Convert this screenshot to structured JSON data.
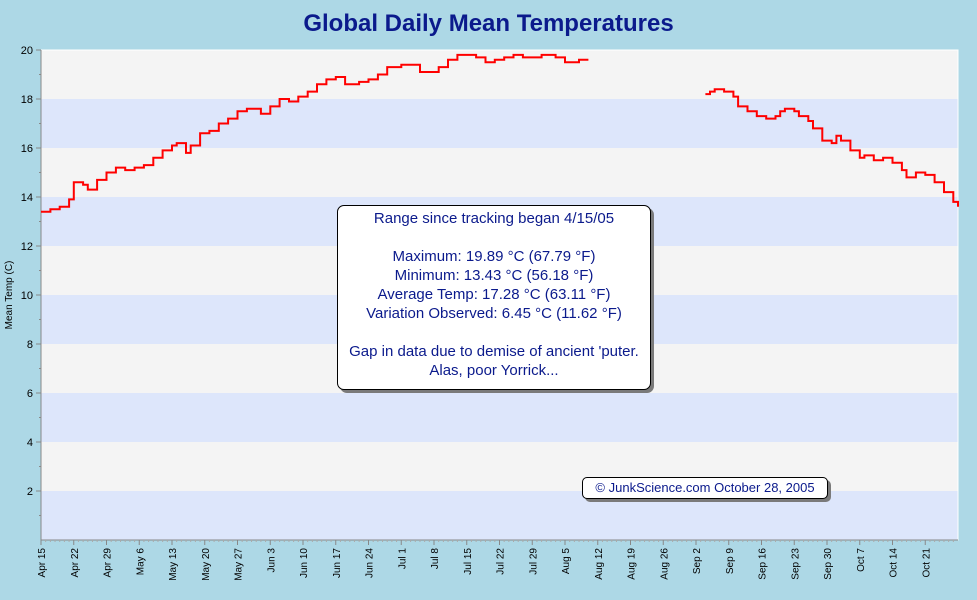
{
  "chart_data": {
    "type": "line",
    "title": "Global Daily Mean Temperatures",
    "ylabel": "Mean Temp (C)",
    "xlabel": "",
    "ylim": [
      0,
      20
    ],
    "yticks": [
      2,
      4,
      6,
      8,
      10,
      12,
      14,
      16,
      18,
      20
    ],
    "x_range": [
      "Apr 15",
      "Oct 28"
    ],
    "x_tick_labels": [
      "Apr 15",
      "Apr 22",
      "Apr 29",
      "May 6",
      "May 13",
      "May 20",
      "May 27",
      "Jun 3",
      "Jun 10",
      "Jun 17",
      "Jun 24",
      "Jul 1",
      "Jul 8",
      "Jul 15",
      "Jul 22",
      "Jul 29",
      "Aug 5",
      "Aug 12",
      "Aug 19",
      "Aug 26",
      "Sep 2",
      "Sep 9",
      "Sep 16",
      "Sep 23",
      "Sep 30",
      "Oct 7",
      "Oct 14",
      "Oct 21"
    ],
    "grid": "horizontal bands",
    "line_color": "#ff0000",
    "series": [
      {
        "values": [
          [
            "Apr 15",
            13.4
          ],
          [
            "Apr 17",
            13.5
          ],
          [
            "Apr 19",
            13.6
          ],
          [
            "Apr 21",
            13.9
          ],
          [
            "Apr 22",
            14.6
          ],
          [
            "Apr 24",
            14.5
          ],
          [
            "Apr 25",
            14.3
          ],
          [
            "Apr 27",
            14.7
          ],
          [
            "Apr 29",
            15.0
          ],
          [
            "May 1",
            15.2
          ],
          [
            "May 3",
            15.1
          ],
          [
            "May 5",
            15.2
          ],
          [
            "May 7",
            15.3
          ],
          [
            "May 9",
            15.6
          ],
          [
            "May 11",
            15.9
          ],
          [
            "May 13",
            16.1
          ],
          [
            "May 14",
            16.2
          ],
          [
            "May 16",
            15.8
          ],
          [
            "May 17",
            16.1
          ],
          [
            "May 19",
            16.6
          ],
          [
            "May 21",
            16.7
          ],
          [
            "May 23",
            17.0
          ],
          [
            "May 25",
            17.2
          ],
          [
            "May 27",
            17.5
          ],
          [
            "May 29",
            17.6
          ],
          [
            "Jun 1",
            17.4
          ],
          [
            "Jun 3",
            17.7
          ],
          [
            "Jun 5",
            18.0
          ],
          [
            "Jun 7",
            17.9
          ],
          [
            "Jun 9",
            18.1
          ],
          [
            "Jun 11",
            18.3
          ],
          [
            "Jun 13",
            18.6
          ],
          [
            "Jun 15",
            18.8
          ],
          [
            "Jun 17",
            18.9
          ],
          [
            "Jun 19",
            18.6
          ],
          [
            "Jun 22",
            18.7
          ],
          [
            "Jun 24",
            18.8
          ],
          [
            "Jun 26",
            19.0
          ],
          [
            "Jun 28",
            19.3
          ],
          [
            "Jul 1",
            19.4
          ],
          [
            "Jul 5",
            19.1
          ],
          [
            "Jul 7",
            19.1
          ],
          [
            "Jul 9",
            19.3
          ],
          [
            "Jul 11",
            19.6
          ],
          [
            "Jul 13",
            19.8
          ],
          [
            "Jul 15",
            19.8
          ],
          [
            "Jul 17",
            19.7
          ],
          [
            "Jul 19",
            19.5
          ],
          [
            "Jul 21",
            19.6
          ],
          [
            "Jul 23",
            19.7
          ],
          [
            "Jul 25",
            19.8
          ],
          [
            "Jul 27",
            19.7
          ],
          [
            "Jul 29",
            19.7
          ],
          [
            "Jul 31",
            19.8
          ],
          [
            "Aug 3",
            19.7
          ],
          [
            "Aug 5",
            19.5
          ],
          [
            "Aug 8",
            19.6
          ],
          [
            "Aug 9",
            19.6
          ]
        ]
      },
      {
        "values": [
          [
            "Sep 4",
            18.2
          ],
          [
            "Sep 5",
            18.3
          ],
          [
            "Sep 6",
            18.4
          ],
          [
            "Sep 8",
            18.3
          ],
          [
            "Sep 10",
            18.1
          ],
          [
            "Sep 11",
            17.7
          ],
          [
            "Sep 13",
            17.5
          ],
          [
            "Sep 15",
            17.3
          ],
          [
            "Sep 17",
            17.2
          ],
          [
            "Sep 19",
            17.3
          ],
          [
            "Sep 20",
            17.5
          ],
          [
            "Sep 21",
            17.6
          ],
          [
            "Sep 23",
            17.5
          ],
          [
            "Sep 24",
            17.3
          ],
          [
            "Sep 26",
            17.1
          ],
          [
            "Sep 27",
            16.8
          ],
          [
            "Sep 29",
            16.3
          ],
          [
            "Oct 1",
            16.2
          ],
          [
            "Oct 2",
            16.5
          ],
          [
            "Oct 3",
            16.3
          ],
          [
            "Oct 5",
            15.9
          ],
          [
            "Oct 7",
            15.6
          ],
          [
            "Oct 8",
            15.7
          ],
          [
            "Oct 10",
            15.5
          ],
          [
            "Oct 12",
            15.6
          ],
          [
            "Oct 14",
            15.4
          ],
          [
            "Oct 16",
            15.1
          ],
          [
            "Oct 17",
            14.8
          ],
          [
            "Oct 19",
            15.0
          ],
          [
            "Oct 21",
            14.9
          ],
          [
            "Oct 23",
            14.6
          ],
          [
            "Oct 25",
            14.2
          ],
          [
            "Oct 27",
            13.8
          ],
          [
            "Oct 28",
            13.6
          ]
        ]
      }
    ]
  },
  "info_box": {
    "heading": "Range since tracking began 4/15/05",
    "maximum": "Maximum: 19.89 °C (67.79 °F)",
    "minimum": "Minimum: 13.43 °C (56.18 °F)",
    "average": "Average Temp: 17.28 °C (63.11 °F)",
    "variation": "Variation Observed: 6.45 °C (11.62 °F)",
    "note_line1": "Gap in data due to demise of ancient 'puter.",
    "note_line2": "Alas, poor Yorrick..."
  },
  "credit": "© JunkScience.com October 28, 2005"
}
